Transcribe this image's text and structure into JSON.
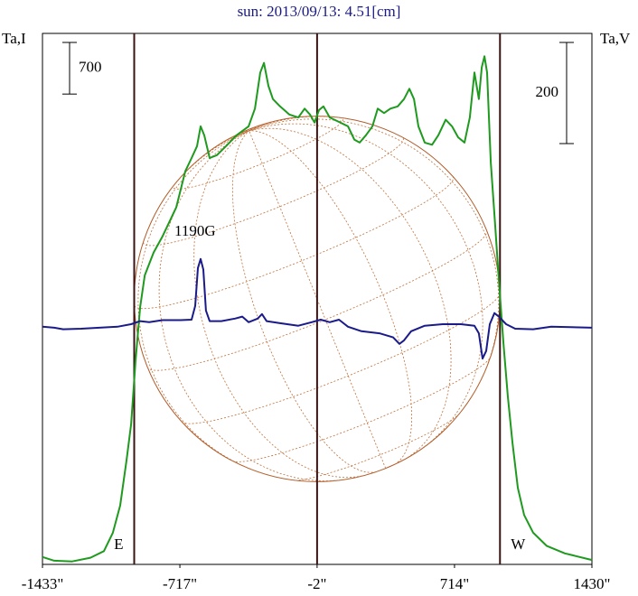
{
  "chart_data": {
    "type": "line",
    "title": "sun: 2013/09/13: 4.51[cm]",
    "ylabel": "Ta,I",
    "y2label": "Ta,V",
    "annotation": "1190G",
    "xlim": [
      -1433,
      1430
    ],
    "xticks": [
      {
        "value": -1433,
        "label": "-1433\""
      },
      {
        "value": -717,
        "label": "-717\""
      },
      {
        "value": -2,
        "label": "-2\""
      },
      {
        "value": 714,
        "label": "714\""
      },
      {
        "value": 1430,
        "label": "1430\""
      }
    ],
    "ylim": [
      0,
      7200
    ],
    "y2lim": [
      -470,
      580
    ],
    "scale_bars": {
      "y": 700,
      "y2": 200
    },
    "center_line": -2,
    "limbs": [
      {
        "x": -955,
        "label": "E"
      },
      {
        "x": 951,
        "label": "W"
      }
    ],
    "series": [
      {
        "color": "#1e9a1e",
        "x": [
          -1433,
          -1372,
          -1278,
          -1183,
          -1113,
          -1066,
          -1028,
          -995,
          -971,
          -948,
          -924,
          -900,
          -854,
          -807,
          -736,
          -689,
          -656,
          -628,
          -609,
          -590,
          -562,
          -524,
          -477,
          -421,
          -359,
          -326,
          -298,
          -279,
          -256,
          -232,
          -195,
          -147,
          -100,
          -67,
          -39,
          -15,
          8,
          31,
          64,
          112,
          159,
          192,
          220,
          253,
          286,
          314,
          347,
          380,
          418,
          451,
          479,
          503,
          526,
          559,
          597,
          630,
          668,
          701,
          733,
          766,
          794,
          818,
          841,
          856,
          870,
          884,
          903,
          926,
          945,
          969,
          992,
          1016,
          1044,
          1077,
          1124,
          1195,
          1289,
          1430
        ],
        "values": [
          100,
          50,
          40,
          90,
          180,
          430,
          800,
          1410,
          1900,
          2760,
          3490,
          3920,
          4230,
          4450,
          4840,
          5330,
          5510,
          5670,
          5940,
          5820,
          5510,
          5550,
          5670,
          5820,
          5940,
          6180,
          6670,
          6800,
          6490,
          6310,
          6210,
          6100,
          6060,
          6180,
          6100,
          5990,
          6160,
          6210,
          6060,
          6000,
          5940,
          5760,
          5720,
          5820,
          5940,
          6180,
          6120,
          6180,
          6210,
          6310,
          6450,
          6310,
          5940,
          5720,
          5690,
          5820,
          6030,
          5940,
          5790,
          5720,
          6060,
          6670,
          6310,
          6740,
          6890,
          6670,
          5450,
          4590,
          3860,
          3000,
          2270,
          1650,
          1040,
          670,
          430,
          250,
          150,
          60
        ]
      },
      {
        "color": "#1a1a8a",
        "axis": "y2",
        "x": [
          -1433,
          -1372,
          -1325,
          -1231,
          -1137,
          -1042,
          -971,
          -924,
          -877,
          -807,
          -713,
          -656,
          -637,
          -623,
          -609,
          -595,
          -581,
          -562,
          -501,
          -430,
          -392,
          -359,
          -312,
          -289,
          -265,
          -195,
          -100,
          -30,
          17,
          64,
          112,
          159,
          229,
          323,
          394,
          427,
          451,
          488,
          559,
          653,
          747,
          818,
          841,
          860,
          879,
          898,
          922,
          945,
          983,
          1030,
          1124,
          1218,
          1430
        ],
        "values": [
          0,
          -2,
          -5,
          -4,
          -2,
          0,
          5,
          11,
          9,
          13,
          13,
          14,
          41,
          116,
          134,
          113,
          32,
          11,
          11,
          16,
          20,
          9,
          16,
          25,
          11,
          7,
          2,
          9,
          14,
          9,
          14,
          0,
          -9,
          -13,
          -21,
          -34,
          -27,
          -9,
          2,
          5,
          5,
          2,
          -13,
          -63,
          -48,
          5,
          27,
          20,
          5,
          -4,
          -5,
          0,
          -2
        ]
      }
    ]
  }
}
